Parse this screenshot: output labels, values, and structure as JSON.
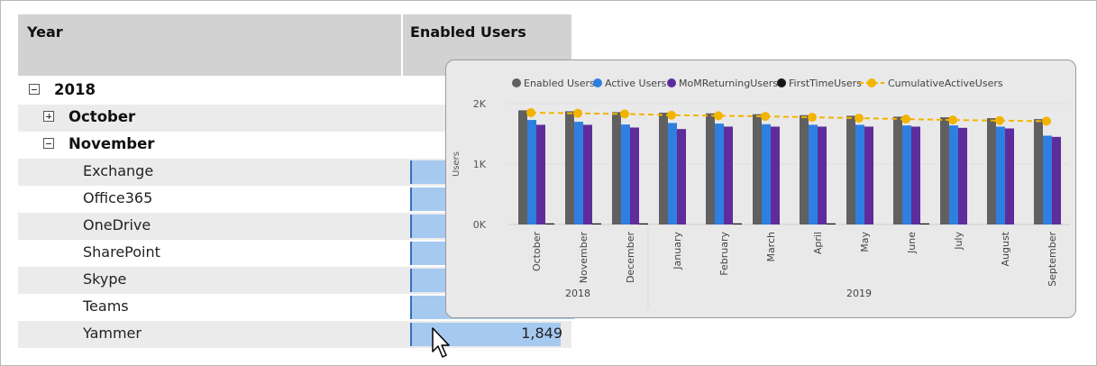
{
  "matrix": {
    "header_year": "Year",
    "header_users": "Enabled Users",
    "year": "2018",
    "month_collapsed": "October",
    "month_expanded": "November",
    "rows": [
      {
        "label": "Exchange"
      },
      {
        "label": "Office365"
      },
      {
        "label": "OneDrive"
      },
      {
        "label": "SharePoint"
      },
      {
        "label": "Skype"
      },
      {
        "label": "Teams"
      },
      {
        "label": "Yammer",
        "value": "1,849"
      }
    ]
  },
  "chart_data": {
    "type": "bar",
    "title": "",
    "ylabel": "Users",
    "xlabel": "",
    "ylim": [
      0,
      2000
    ],
    "yticks": [
      0,
      1000,
      2000
    ],
    "ytick_labels": [
      "0K",
      "1K",
      "2K"
    ],
    "categories": [
      "October",
      "November",
      "December",
      "January",
      "February",
      "March",
      "April",
      "May",
      "June",
      "July",
      "August",
      "September"
    ],
    "year_groups": [
      {
        "label": "2018",
        "count": 3
      },
      {
        "label": "2019",
        "count": 9
      }
    ],
    "legend_position": "top",
    "series": [
      {
        "name": "Enabled Users",
        "type": "bar",
        "color": "#606060",
        "values": [
          1890,
          1875,
          1860,
          1850,
          1840,
          1825,
          1810,
          1800,
          1785,
          1775,
          1760,
          1745
        ]
      },
      {
        "name": "Active Users",
        "type": "bar",
        "color": "#2e7fe0",
        "values": [
          1730,
          1700,
          1655,
          1680,
          1670,
          1660,
          1650,
          1650,
          1640,
          1640,
          1620,
          1470
        ]
      },
      {
        "name": "MoMReturningUsers",
        "type": "bar",
        "color": "#5f2c9c",
        "values": [
          1650,
          1650,
          1605,
          1580,
          1620,
          1620,
          1620,
          1620,
          1620,
          1600,
          1590,
          1450
        ]
      },
      {
        "name": "FirstTimeUsers",
        "type": "bar",
        "color": "#161616",
        "values": [
          15,
          15,
          15,
          0,
          15,
          0,
          15,
          0,
          15,
          0,
          0,
          0
        ]
      },
      {
        "name": "CumulativeActiveUsers",
        "type": "line",
        "color": "#f3b400",
        "values": [
          1850,
          1840,
          1830,
          1810,
          1800,
          1790,
          1775,
          1760,
          1745,
          1730,
          1720,
          1710
        ]
      }
    ]
  }
}
